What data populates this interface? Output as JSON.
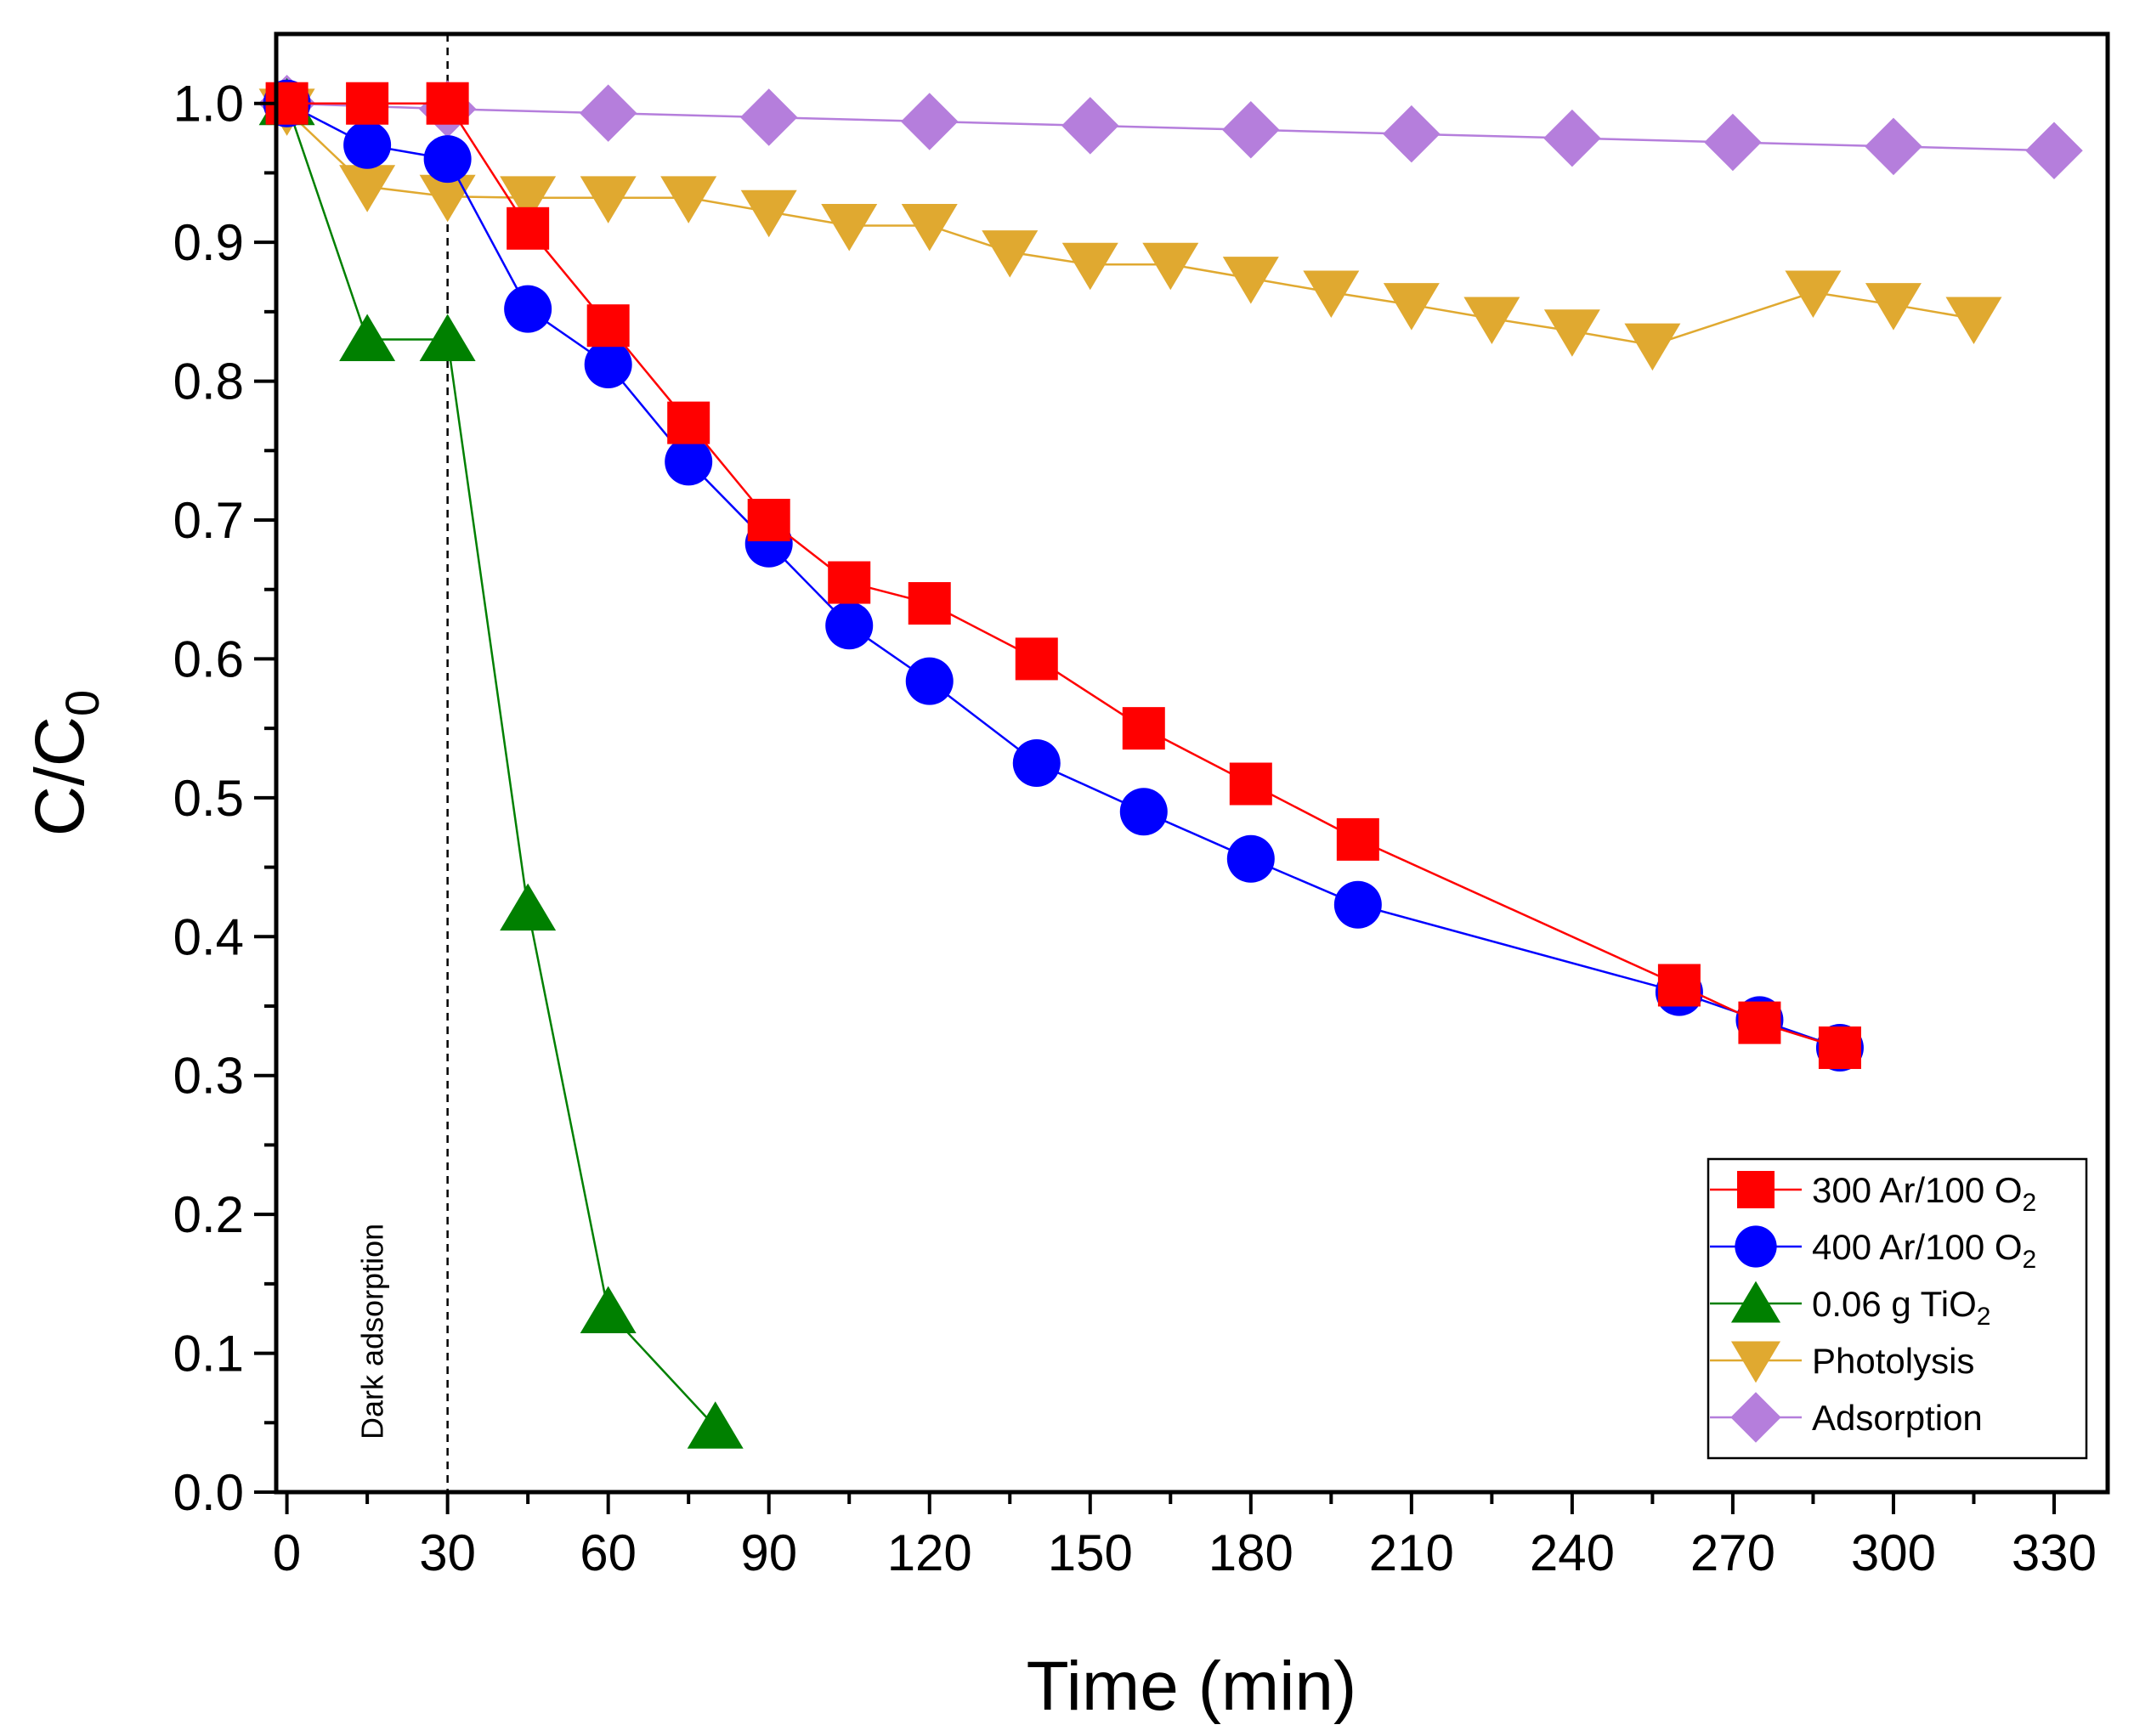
{
  "chart_data": {
    "type": "line",
    "xlabel": "Time (min)",
    "ylabel": {
      "main": "C/C",
      "sub": "0"
    },
    "xlim": [
      -2,
      340
    ],
    "ylim": [
      0.0,
      1.05
    ],
    "xticks": [
      0,
      30,
      60,
      90,
      120,
      150,
      180,
      210,
      240,
      270,
      300,
      330
    ],
    "xtick_labels": [
      "0",
      "30",
      "60",
      "90",
      "120",
      "150",
      "180",
      "210",
      "240",
      "270",
      "300",
      "330"
    ],
    "yticks": [
      0.0,
      0.1,
      0.2,
      0.3,
      0.4,
      0.5,
      0.6,
      0.7,
      0.8,
      0.9,
      1.0
    ],
    "ytick_labels": [
      "0.0",
      "0.1",
      "0.2",
      "0.3",
      "0.4",
      "0.5",
      "0.6",
      "0.7",
      "0.8",
      "0.9",
      "1.0"
    ],
    "grid": false,
    "legend_position": "bottom-right",
    "annotations": [
      {
        "text": "Dark adsorption",
        "x": 30,
        "style": "dashed vertical line"
      }
    ],
    "series": [
      {
        "name": {
          "main": "300 Ar/100 O",
          "sub": "2"
        },
        "marker": "square",
        "color": "#ff0000",
        "x": [
          0,
          15,
          30,
          45,
          60,
          75,
          90,
          105,
          120,
          140,
          160,
          180,
          200,
          260,
          275,
          290
        ],
        "y": [
          1.0,
          1.0,
          1.0,
          0.91,
          0.84,
          0.77,
          0.7,
          0.655,
          0.64,
          0.6,
          0.55,
          0.51,
          0.47,
          0.365,
          0.338,
          0.32
        ]
      },
      {
        "name": {
          "main": "400 Ar/100 O",
          "sub": "2"
        },
        "marker": "circle",
        "color": "#0000ff",
        "x": [
          0,
          15,
          30,
          45,
          60,
          75,
          90,
          105,
          120,
          140,
          160,
          180,
          200,
          260,
          275,
          290
        ],
        "y": [
          1.0,
          0.97,
          0.96,
          0.852,
          0.812,
          0.742,
          0.683,
          0.624,
          0.584,
          0.525,
          0.49,
          0.456,
          0.423,
          0.36,
          0.34,
          0.32
        ]
      },
      {
        "name": {
          "main": "0.06 g TiO",
          "sub": "2"
        },
        "marker": "triangle-up",
        "color": "#008000",
        "x": [
          0,
          15,
          30,
          45,
          60,
          80
        ],
        "y": [
          1.0,
          0.83,
          0.83,
          0.42,
          0.13,
          0.047
        ]
      },
      {
        "name": {
          "main": "Photolysis",
          "sub": ""
        },
        "marker": "triangle-down",
        "color": "#e0a930",
        "x": [
          0,
          15,
          30,
          45,
          60,
          75,
          90,
          105,
          120,
          135,
          150,
          165,
          180,
          195,
          210,
          225,
          240,
          255,
          285,
          300,
          315
        ],
        "y": [
          0.995,
          0.94,
          0.933,
          0.932,
          0.932,
          0.932,
          0.922,
          0.912,
          0.912,
          0.893,
          0.884,
          0.884,
          0.874,
          0.864,
          0.855,
          0.845,
          0.836,
          0.826,
          0.864,
          0.855,
          0.845
        ]
      },
      {
        "name": {
          "main": "Adsorption",
          "sub": ""
        },
        "marker": "diamond",
        "color": "#b57edc",
        "x": [
          0,
          30,
          60,
          90,
          120,
          150,
          180,
          210,
          240,
          270,
          300,
          330
        ],
        "y": [
          1.0,
          0.996,
          0.993,
          0.99,
          0.987,
          0.984,
          0.981,
          0.978,
          0.975,
          0.972,
          0.969,
          0.966
        ]
      }
    ]
  }
}
